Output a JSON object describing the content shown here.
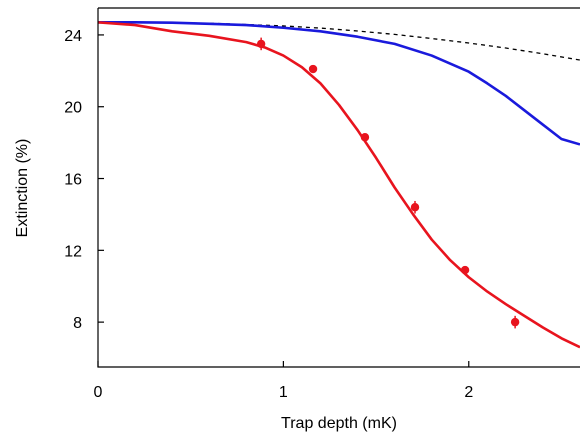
{
  "chart_data": {
    "type": "line",
    "xlabel": "Trap depth (mK)",
    "ylabel": "Extinction (%)",
    "xlim": [
      0,
      2.6
    ],
    "ylim": [
      5.5,
      25.5
    ],
    "x_ticks": [
      0,
      1,
      2
    ],
    "y_ticks": [
      8,
      12,
      16,
      20,
      24
    ],
    "grid": false,
    "legend": "none",
    "series": [
      {
        "kind": "line",
        "style": "dashed",
        "color": "#000000",
        "x": [
          0,
          0.2,
          0.4,
          0.6,
          0.8,
          1.0,
          1.2,
          1.4,
          1.6,
          1.8,
          2.0,
          2.2,
          2.4,
          2.6
        ],
        "y": [
          24.7,
          24.7,
          24.68,
          24.65,
          24.58,
          24.5,
          24.38,
          24.22,
          24.03,
          23.8,
          23.55,
          23.27,
          22.95,
          22.6
        ]
      },
      {
        "kind": "line",
        "style": "solid",
        "color": "#1a1adc",
        "x": [
          0,
          0.2,
          0.4,
          0.6,
          0.8,
          1.0,
          1.2,
          1.4,
          1.6,
          1.8,
          2.0,
          2.1,
          2.2,
          2.3,
          2.4,
          2.5,
          2.6
        ],
        "y": [
          24.7,
          24.7,
          24.68,
          24.62,
          24.55,
          24.4,
          24.2,
          23.9,
          23.5,
          22.85,
          21.95,
          21.3,
          20.6,
          19.8,
          19.0,
          18.2,
          17.9
        ]
      },
      {
        "kind": "line",
        "style": "solid",
        "color": "#e8141e",
        "x": [
          0,
          0.2,
          0.4,
          0.6,
          0.8,
          0.9,
          1.0,
          1.1,
          1.2,
          1.3,
          1.4,
          1.5,
          1.6,
          1.7,
          1.8,
          1.9,
          2.0,
          2.1,
          2.2,
          2.3,
          2.4,
          2.5,
          2.6
        ],
        "y": [
          24.7,
          24.55,
          24.2,
          23.95,
          23.6,
          23.3,
          22.85,
          22.2,
          21.3,
          20.1,
          18.7,
          17.15,
          15.5,
          14.0,
          12.6,
          11.45,
          10.5,
          9.7,
          9.0,
          8.35,
          7.7,
          7.1,
          6.6
        ]
      },
      {
        "kind": "points",
        "color": "#e8141e",
        "x": [
          0.88,
          1.16,
          1.44,
          1.71,
          1.98,
          2.25
        ],
        "y": [
          23.5,
          22.1,
          18.3,
          14.4,
          10.9,
          8.0
        ],
        "yerr": [
          0.35,
          0.2,
          0.2,
          0.35,
          0.2,
          0.35
        ]
      }
    ]
  }
}
